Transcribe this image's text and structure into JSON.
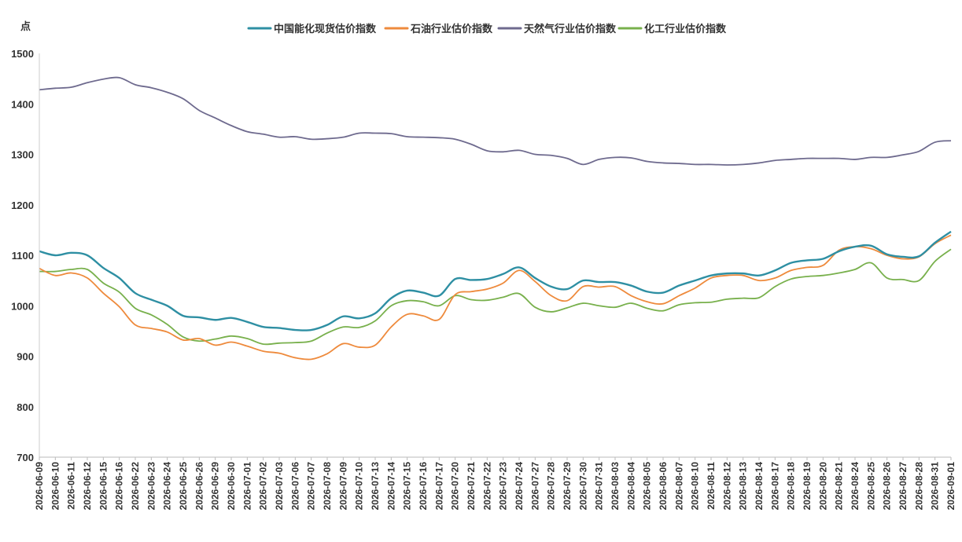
{
  "chart_data": {
    "type": "line",
    "title": "",
    "ylabel": "点",
    "xlabel": "",
    "ylim": [
      700,
      1500
    ],
    "yticks": [
      700,
      800,
      900,
      1000,
      1100,
      1200,
      1300,
      1400,
      1500
    ],
    "legend_position": "top-center",
    "grid": false,
    "categories": [
      "2026-06-09",
      "2026-06-10",
      "2026-06-11",
      "2026-06-12",
      "2026-06-15",
      "2026-06-16",
      "2026-06-22",
      "2026-06-23",
      "2026-06-24",
      "2026-06-25",
      "2026-06-26",
      "2026-06-29",
      "2026-06-30",
      "2026-07-01",
      "2026-07-02",
      "2026-07-03",
      "2026-07-06",
      "2026-07-07",
      "2026-07-08",
      "2026-07-09",
      "2026-07-10",
      "2026-07-13",
      "2026-07-14",
      "2026-07-15",
      "2026-07-16",
      "2026-07-17",
      "2026-07-20",
      "2026-07-21",
      "2026-07-22",
      "2026-07-23",
      "2026-07-24",
      "2026-07-27",
      "2026-07-28",
      "2026-07-29",
      "2026-07-30",
      "2026-07-31",
      "2026-08-03",
      "2026-08-04",
      "2026-08-05",
      "2026-08-06",
      "2026-08-07",
      "2026-08-10",
      "2026-08-11",
      "2026-08-12",
      "2026-08-13",
      "2026-08-14",
      "2026-08-17",
      "2026-08-18",
      "2026-08-19",
      "2026-08-20",
      "2026-08-21",
      "2026-08-24",
      "2026-08-25",
      "2026-08-26",
      "2026-08-27",
      "2026-08-28",
      "2026-08-31",
      "2026-09-01"
    ],
    "series": [
      {
        "name": "中国能化现货估价指数",
        "color": "#2e8fa3",
        "values": [
          1108,
          1100,
          1105,
          1100,
          1075,
          1055,
          1025,
          1012,
          1000,
          980,
          977,
          972,
          976,
          968,
          958,
          956,
          952,
          952,
          962,
          979,
          975,
          985,
          1015,
          1030,
          1026,
          1020,
          1053,
          1051,
          1053,
          1063,
          1076,
          1055,
          1038,
          1033,
          1050,
          1047,
          1047,
          1040,
          1028,
          1026,
          1040,
          1050,
          1060,
          1064,
          1064,
          1060,
          1070,
          1085,
          1090,
          1093,
          1108,
          1117,
          1119,
          1102,
          1097,
          1098,
          1125,
          1147
        ]
      },
      {
        "name": "石油行业估价指数",
        "color": "#ee8a3c",
        "values": [
          1074,
          1060,
          1065,
          1055,
          1025,
          998,
          962,
          955,
          948,
          932,
          935,
          922,
          928,
          920,
          910,
          906,
          897,
          894,
          905,
          925,
          918,
          922,
          958,
          983,
          980,
          973,
          1022,
          1028,
          1033,
          1045,
          1070,
          1048,
          1020,
          1010,
          1038,
          1037,
          1038,
          1020,
          1008,
          1004,
          1020,
          1035,
          1055,
          1060,
          1060,
          1050,
          1055,
          1070,
          1076,
          1080,
          1110,
          1117,
          1113,
          1100,
          1093,
          1097,
          1123,
          1140
        ]
      },
      {
        "name": "天然气行业估价指数",
        "color": "#6e6a8e",
        "values": [
          1428,
          1431,
          1433,
          1442,
          1449,
          1452,
          1438,
          1432,
          1423,
          1410,
          1387,
          1372,
          1357,
          1345,
          1340,
          1334,
          1335,
          1330,
          1331,
          1334,
          1342,
          1342,
          1341,
          1335,
          1334,
          1333,
          1330,
          1320,
          1307,
          1305,
          1308,
          1300,
          1298,
          1292,
          1280,
          1290,
          1294,
          1293,
          1286,
          1283,
          1282,
          1280,
          1280,
          1279,
          1280,
          1283,
          1288,
          1290,
          1292,
          1292,
          1292,
          1290,
          1294,
          1294,
          1299,
          1306,
          1324,
          1327
        ]
      },
      {
        "name": "化工行业估价指数",
        "color": "#78b04c",
        "values": [
          1068,
          1068,
          1072,
          1072,
          1045,
          1027,
          995,
          982,
          963,
          938,
          930,
          934,
          940,
          935,
          924,
          926,
          927,
          930,
          946,
          958,
          957,
          970,
          1000,
          1010,
          1008,
          1000,
          1020,
          1012,
          1011,
          1017,
          1024,
          997,
          988,
          996,
          1005,
          1000,
          997,
          1005,
          995,
          990,
          1002,
          1006,
          1007,
          1013,
          1015,
          1016,
          1038,
          1053,
          1058,
          1060,
          1065,
          1072,
          1085,
          1055,
          1052,
          1050,
          1088,
          1112
        ]
      }
    ]
  }
}
